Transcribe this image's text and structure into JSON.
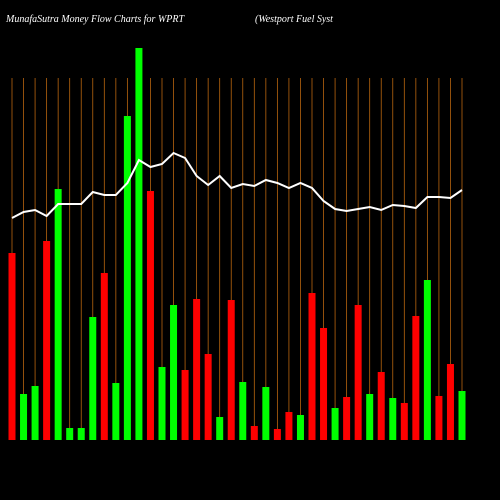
{
  "chart_data": {
    "type": "bar",
    "title": "MunafaSutra  Money Flow  Charts for WPRT",
    "subtitle": "(Westport Fuel Syst",
    "ylim": [
      0,
      400
    ],
    "values": [
      187,
      46,
      54,
      199,
      251,
      12,
      12,
      123,
      167,
      57,
      324,
      392,
      249,
      73,
      135,
      70,
      141,
      86,
      23,
      140,
      58,
      14,
      53,
      11,
      28,
      25,
      147,
      112,
      32,
      43,
      135,
      46,
      68,
      42,
      37,
      124,
      160,
      44,
      76,
      49
    ],
    "colors": [
      "red",
      "lime",
      "lime",
      "red",
      "lime",
      "lime",
      "lime",
      "lime",
      "red",
      "lime",
      "lime",
      "lime",
      "red",
      "lime",
      "lime",
      "red",
      "red",
      "red",
      "lime",
      "red",
      "lime",
      "red",
      "lime",
      "red",
      "red",
      "lime",
      "red",
      "red",
      "lime",
      "red",
      "red",
      "lime",
      "red",
      "lime",
      "red",
      "red",
      "lime",
      "red",
      "red",
      "lime"
    ],
    "line_values": [
      222,
      228,
      230,
      224,
      236,
      236,
      236,
      248,
      245,
      245,
      257,
      280,
      273,
      276,
      287,
      282,
      264,
      255,
      264,
      252,
      256,
      254,
      260,
      257,
      252,
      257,
      252,
      239,
      231,
      229,
      231,
      233,
      230,
      235,
      234,
      232,
      243,
      243,
      242,
      250
    ],
    "line_color": "#ffffff",
    "grid_color": "#b8650f"
  }
}
